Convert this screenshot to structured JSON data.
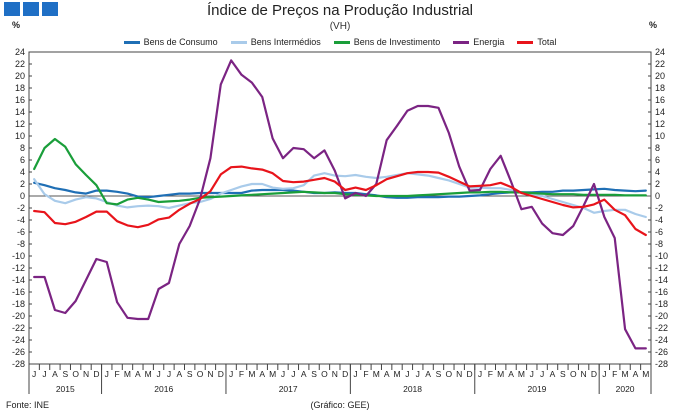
{
  "header": {
    "title": "Índice de Preços na Produção Industrial",
    "subtitle": "(VH)",
    "unit_left": "%",
    "unit_right": "%",
    "logo_color": "#1f6fc5"
  },
  "footer": {
    "source": "Fonte: INE",
    "credit": "(Gráfico: GEE)"
  },
  "chart_data": {
    "type": "line",
    "title": "Índice de Preços na Produção Industrial",
    "subtitle": "(VH)",
    "ylabel": "%",
    "ylim": [
      -28,
      24
    ],
    "ytick_step": 2,
    "grid": false,
    "legend_position": "top",
    "month_labels": [
      "J",
      "J",
      "A",
      "S",
      "O",
      "N",
      "D",
      "J",
      "F",
      "M",
      "A",
      "M",
      "J",
      "J",
      "A",
      "S",
      "O",
      "N",
      "D",
      "J",
      "F",
      "M",
      "A",
      "M",
      "J",
      "J",
      "A",
      "S",
      "O",
      "N",
      "D",
      "J",
      "F",
      "M",
      "A",
      "M",
      "J",
      "J",
      "A",
      "S",
      "O",
      "N",
      "D",
      "J",
      "F",
      "M",
      "A",
      "M",
      "J",
      "J",
      "A",
      "S",
      "O",
      "N",
      "D",
      "J",
      "F",
      "M",
      "A",
      "M"
    ],
    "year_groups": [
      {
        "label": "2015",
        "months": 7
      },
      {
        "label": "2016",
        "months": 12
      },
      {
        "label": "2017",
        "months": 12
      },
      {
        "label": "2018",
        "months": 12
      },
      {
        "label": "2019",
        "months": 12
      },
      {
        "label": "2020",
        "months": 5
      }
    ],
    "series": [
      {
        "name": "Bens de Consumo",
        "color": "#1f6fb5",
        "values": [
          2.2,
          1.8,
          1.3,
          1.0,
          0.6,
          0.4,
          0.9,
          0.9,
          0.7,
          0.4,
          -0.1,
          -0.2,
          0.0,
          0.2,
          0.4,
          0.4,
          0.5,
          0.5,
          0.5,
          0.5,
          0.5,
          0.9,
          1.0,
          1.0,
          1.0,
          0.9,
          0.7,
          0.5,
          0.5,
          0.6,
          0.5,
          0.5,
          0.3,
          0.1,
          -0.2,
          -0.3,
          -0.3,
          -0.2,
          -0.2,
          -0.2,
          -0.1,
          -0.1,
          0.0,
          0.1,
          0.3,
          0.5,
          0.6,
          0.6,
          0.6,
          0.7,
          0.7,
          0.9,
          0.9,
          1.0,
          1.1,
          1.2,
          1.0,
          0.9,
          0.8,
          0.9
        ]
      },
      {
        "name": "Bens Intermédios",
        "color": "#a9cbea",
        "values": [
          2.8,
          0.3,
          -0.8,
          -1.2,
          -0.6,
          -0.2,
          -0.4,
          -1.0,
          -1.6,
          -1.9,
          -1.7,
          -1.6,
          -1.7,
          -2.0,
          -1.6,
          -1.2,
          -1.0,
          -0.5,
          0.4,
          1.0,
          1.6,
          2.0,
          2.0,
          1.4,
          1.2,
          1.3,
          1.8,
          3.4,
          3.8,
          3.4,
          3.3,
          3.5,
          3.2,
          3.0,
          3.2,
          3.5,
          3.8,
          3.6,
          3.4,
          3.0,
          2.6,
          2.0,
          1.4,
          1.4,
          1.3,
          1.3,
          1.0,
          0.5,
          0.2,
          0.0,
          -0.5,
          -1.0,
          -1.5,
          -2.0,
          -2.8,
          -2.5,
          -2.3,
          -2.3,
          -3.0,
          -3.5
        ]
      },
      {
        "name": "Bens de Investimento",
        "color": "#1a9e3a",
        "values": [
          4.5,
          8.0,
          9.5,
          8.2,
          5.3,
          3.5,
          1.8,
          -1.2,
          -1.4,
          -0.6,
          -0.3,
          -0.6,
          -1.0,
          -0.9,
          -0.8,
          -0.6,
          -0.3,
          -0.2,
          -0.1,
          0.0,
          0.1,
          0.2,
          0.3,
          0.4,
          0.5,
          0.6,
          0.7,
          0.6,
          0.5,
          0.5,
          0.3,
          0.2,
          0.1,
          0.0,
          0.0,
          0.0,
          0.0,
          0.1,
          0.2,
          0.3,
          0.4,
          0.5,
          0.6,
          0.6,
          0.7,
          0.7,
          0.6,
          0.6,
          0.5,
          0.4,
          0.3,
          0.3,
          0.3,
          0.2,
          0.2,
          0.2,
          0.2,
          0.1,
          0.1,
          0.1
        ]
      },
      {
        "name": "Energia",
        "color": "#7b2483",
        "values": [
          -13.5,
          -13.5,
          -19.0,
          -19.5,
          -17.5,
          -14.0,
          -10.5,
          -11.0,
          -17.7,
          -20.3,
          -20.5,
          -20.5,
          -15.5,
          -14.5,
          -8.0,
          -5.0,
          -0.5,
          6.3,
          18.6,
          22.6,
          20.2,
          18.9,
          16.5,
          9.6,
          6.3,
          8.0,
          7.8,
          6.3,
          7.6,
          4.2,
          -0.4,
          0.5,
          0.0,
          2.0,
          9.3,
          11.7,
          14.2,
          15.0,
          15.0,
          14.7,
          10.5,
          4.9,
          0.9,
          1.0,
          4.5,
          6.7,
          2.4,
          -2.2,
          -1.8,
          -4.6,
          -6.2,
          -6.5,
          -5.0,
          -1.6,
          2.0,
          -3.5,
          -7.0,
          -22.2,
          -25.4,
          -25.4
        ]
      },
      {
        "name": "Total",
        "color": "#e8141b",
        "values": [
          -2.5,
          -2.7,
          -4.5,
          -4.7,
          -4.3,
          -3.5,
          -2.6,
          -2.6,
          -4.2,
          -4.9,
          -5.2,
          -4.8,
          -3.9,
          -3.6,
          -2.3,
          -1.3,
          -0.5,
          0.8,
          3.6,
          4.8,
          4.9,
          4.6,
          4.4,
          3.8,
          2.5,
          2.3,
          2.4,
          2.7,
          3.0,
          2.4,
          1.0,
          1.4,
          1.0,
          1.8,
          2.8,
          3.3,
          3.8,
          4.0,
          4.0,
          3.9,
          3.2,
          2.4,
          1.6,
          1.7,
          1.8,
          2.2,
          1.5,
          0.5,
          0.0,
          -0.5,
          -1.0,
          -1.5,
          -1.9,
          -1.8,
          -1.4,
          -0.6,
          -2.3,
          -3.2,
          -5.5,
          -6.5
        ]
      }
    ]
  }
}
